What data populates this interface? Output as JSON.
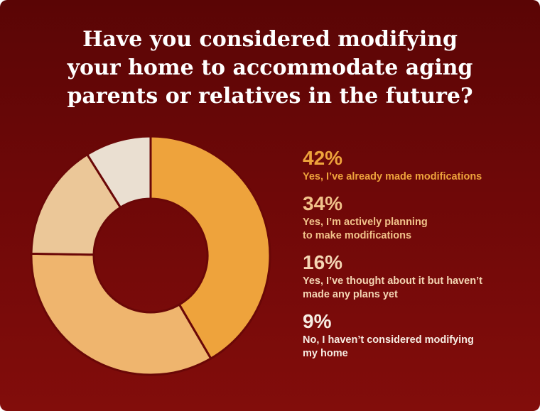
{
  "title_lines": [
    "Have you considered modifying",
    "your home to accommodate aging",
    "parents or relatives in the future?"
  ],
  "colors": {
    "slice_1": "#eea33c",
    "slice_2": "#efb56e",
    "slice_3": "#ebc798",
    "slice_4": "#eadfd1",
    "label_1": "#eea33c",
    "label_2": "#f1c28a",
    "label_3": "#f4d6b4",
    "label_4": "#f6ece2",
    "separator": "#6a0707"
  },
  "chart_data": {
    "type": "pie",
    "title": "Have you considered modifying your home to accommodate aging parents or relatives in the future?",
    "donut": true,
    "start": "top, clockwise",
    "legend_position": "right",
    "slices": [
      {
        "value": 42,
        "label": "42%",
        "description": [
          "Yes, I’ve already made modifications"
        ]
      },
      {
        "value": 34,
        "label": "34%",
        "description": [
          "Yes, I’m actively planning",
          "to make modifications"
        ]
      },
      {
        "value": 16,
        "label": "16%",
        "description": [
          "Yes, I’ve thought about it but haven’t",
          "made any plans yet"
        ]
      },
      {
        "value": 9,
        "label": "9%",
        "description": [
          "No, I haven’t considered modifying",
          "my home"
        ]
      }
    ]
  }
}
